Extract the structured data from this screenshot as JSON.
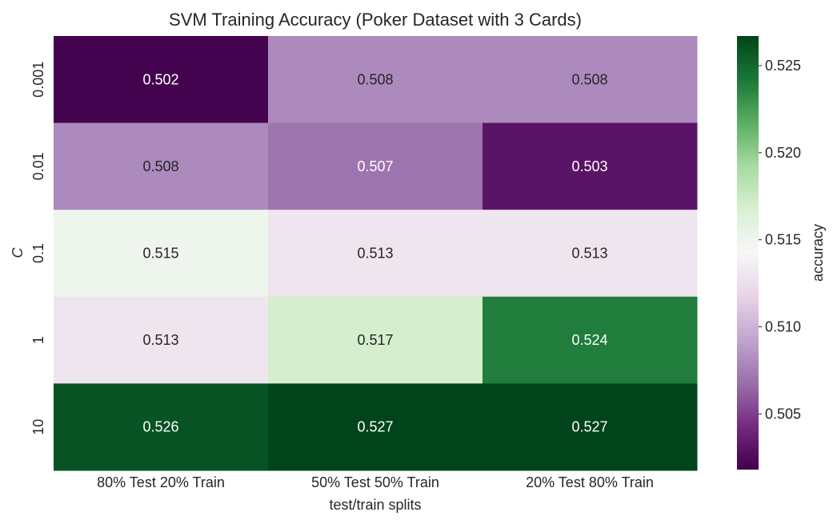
{
  "chart_data": {
    "type": "heatmap",
    "title": "SVM Training Accuracy (Poker Dataset with 3 Cards)",
    "xlabel": "test/train splits",
    "ylabel": "C",
    "x_categories": [
      "80% Test 20% Train",
      "50% Test 50% Train",
      "20% Test 80% Train"
    ],
    "y_categories": [
      "0.001",
      "0.01",
      "0.1",
      "1",
      "10"
    ],
    "values": [
      [
        0.502,
        0.508,
        0.508
      ],
      [
        0.508,
        0.507,
        0.503
      ],
      [
        0.515,
        0.513,
        0.513
      ],
      [
        0.513,
        0.517,
        0.524
      ],
      [
        0.526,
        0.527,
        0.527
      ]
    ],
    "value_labels": [
      [
        "0.502",
        "0.508",
        "0.508"
      ],
      [
        "0.508",
        "0.507",
        "0.503"
      ],
      [
        "0.515",
        "0.513",
        "0.513"
      ],
      [
        "0.513",
        "0.517",
        "0.524"
      ],
      [
        "0.526",
        "0.527",
        "0.527"
      ]
    ],
    "colormap": "PRGn",
    "colormap_stops": [
      "#40004b",
      "#762a83",
      "#9970ab",
      "#c2a5cf",
      "#e7d4e8",
      "#f7f7f7",
      "#d9f0d3",
      "#a6dba0",
      "#5aae61",
      "#1b7837",
      "#00441b"
    ],
    "vmin": 0.5018,
    "vmax": 0.5267,
    "colorbar": {
      "label": "accuracy",
      "ticks": [
        0.505,
        0.51,
        0.515,
        0.52,
        0.525
      ],
      "tick_labels": [
        "0.505",
        "0.510",
        "0.515",
        "0.520",
        "0.525"
      ]
    },
    "cell_text_colors": {
      "dark": "#ffffff",
      "light": "#262626"
    }
  }
}
